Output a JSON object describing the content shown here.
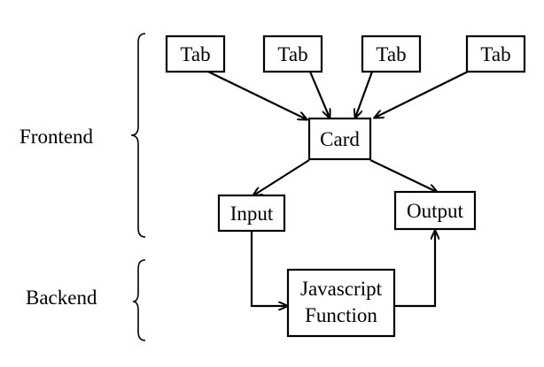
{
  "groups": {
    "frontend": "Frontend",
    "backend": "Backend"
  },
  "nodes": {
    "tab1": "Tab",
    "tab2": "Tab",
    "tab3": "Tab",
    "tab4": "Tab",
    "card": "Card",
    "input": "Input",
    "output": "Output",
    "js_line1": "Javascript",
    "js_line2": "Function"
  },
  "colors": {
    "stroke": "#000000",
    "background": "#ffffff"
  }
}
